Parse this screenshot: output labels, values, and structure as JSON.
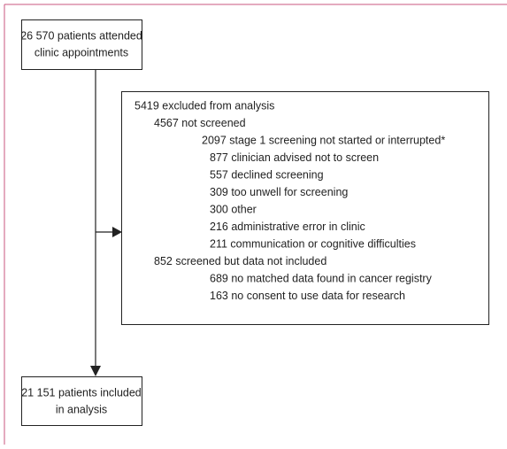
{
  "start": {
    "lines": [
      "26 570 patients attended",
      "clinic appointments"
    ]
  },
  "excluded": {
    "lines": [
      "5419 excluded from analysis",
      "4567 not screened",
      "2097 stage 1 screening not started or interrupted*",
      "877 clinician advised not to screen",
      "557 declined screening",
      "309 too unwell for screening",
      "300 other",
      "216 administrative error in clinic",
      "211 communication or cognitive difficulties",
      "852 screened but data not included",
      "689 no matched data found in cancer registry",
      "163 no consent to use data for research"
    ]
  },
  "included": {
    "lines": [
      "21 151 patients included",
      "in analysis"
    ]
  }
}
